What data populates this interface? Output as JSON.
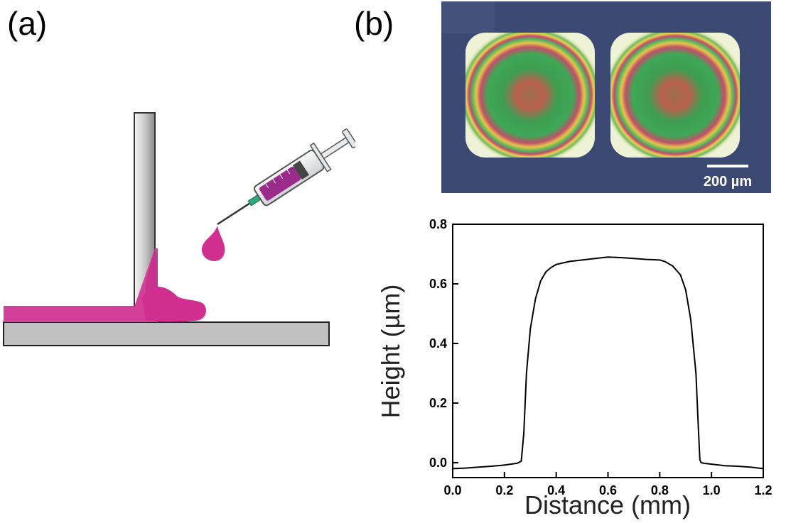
{
  "panels": {
    "a": {
      "label": "(a)",
      "ink_color": "#d12f8f"
    },
    "b": {
      "label": "(b)",
      "micrograph": {
        "scale_bar_label": "200 µm"
      }
    }
  },
  "chart_data": {
    "type": "line",
    "xlabel": "Distance (mm)",
    "ylabel": "Height (µm)",
    "xlim": [
      0,
      1.2
    ],
    "ylim": [
      -0.05,
      0.8
    ],
    "xticks": [
      0.0,
      0.2,
      0.4,
      0.6,
      0.8,
      1.0,
      1.2
    ],
    "xtick_labels": [
      "0.0",
      "0.2",
      "0.4",
      "0.6",
      "0.8",
      "1.0",
      "1.2"
    ],
    "yticks": [
      0.0,
      0.2,
      0.4,
      0.6,
      0.8
    ],
    "ytick_labels": [
      "0.0",
      "0.2",
      "0.4",
      "0.6",
      "0.8"
    ],
    "grid": false,
    "series": [
      {
        "color": "#000000",
        "x": [
          0.0,
          0.05,
          0.1,
          0.15,
          0.2,
          0.25,
          0.265,
          0.275,
          0.285,
          0.3,
          0.32,
          0.34,
          0.36,
          0.38,
          0.4,
          0.45,
          0.5,
          0.55,
          0.6,
          0.65,
          0.7,
          0.75,
          0.8,
          0.82,
          0.85,
          0.88,
          0.9,
          0.92,
          0.94,
          0.95,
          0.955,
          0.96,
          0.97,
          1.0,
          1.05,
          1.1,
          1.15,
          1.2
        ],
        "y": [
          -0.02,
          -0.018,
          -0.015,
          -0.012,
          -0.008,
          -0.002,
          0.005,
          0.1,
          0.3,
          0.45,
          0.55,
          0.61,
          0.64,
          0.655,
          0.665,
          0.675,
          0.68,
          0.685,
          0.69,
          0.688,
          0.685,
          0.682,
          0.68,
          0.675,
          0.66,
          0.63,
          0.58,
          0.48,
          0.3,
          0.1,
          0.01,
          0.0,
          -0.002,
          -0.005,
          -0.01,
          -0.012,
          -0.015,
          -0.02
        ]
      }
    ]
  }
}
